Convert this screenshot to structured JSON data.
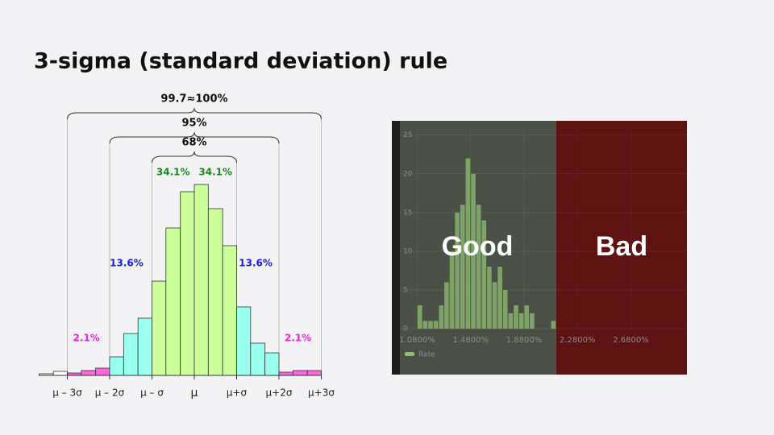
{
  "title": "3-sigma (standard deviation) rule",
  "chart_data": [
    {
      "type": "histogram",
      "bins": [
        -3.67,
        -3.33,
        -3,
        -2.67,
        -2.33,
        -2,
        -1.67,
        -1.33,
        -1,
        -0.67,
        -0.33,
        0,
        0.33,
        0.67,
        1,
        1.33,
        1.67,
        2,
        2.33,
        2.67,
        3
      ],
      "values": [
        2,
        5,
        3,
        6,
        9,
        23,
        52,
        71,
        117,
        183,
        228,
        237,
        207,
        161,
        85,
        40,
        28,
        4,
        6,
        6
      ],
      "colors": [
        "#f2f2f2",
        "#ffffff",
        "#ff66dd",
        "#ff66dd",
        "#ff66dd",
        "#99ffee",
        "#99ffee",
        "#99ffee",
        "#ccff99",
        "#ccff99",
        "#ccff99",
        "#ccff99",
        "#ccff99",
        "#ccff99",
        "#99ffee",
        "#99ffee",
        "#99ffee",
        "#ff66dd",
        "#ff66dd",
        "#ff66dd"
      ],
      "xticks": [
        {
          "value": -3,
          "label": "μ – 3σ"
        },
        {
          "value": -2,
          "label": "μ – 2σ"
        },
        {
          "value": -1,
          "label": "μ – σ"
        },
        {
          "value": 0,
          "label": "μ"
        },
        {
          "value": 1,
          "label": "μ+σ"
        },
        {
          "value": 2,
          "label": "μ+2σ"
        },
        {
          "value": 3,
          "label": "μ+3σ"
        }
      ],
      "braces": [
        {
          "label": "99.7≈100%",
          "from": -3,
          "to": 3
        },
        {
          "label": "95%",
          "from": -2,
          "to": 2
        },
        {
          "label": "68%",
          "from": -1,
          "to": 1
        }
      ],
      "annotations": [
        {
          "text": "34.1%",
          "x": -0.5,
          "color": "#1a8a1a"
        },
        {
          "text": "34.1%",
          "x": 0.5,
          "color": "#1a8a1a"
        },
        {
          "text": "13.6%",
          "x": -1.6,
          "color": "#1a1aee"
        },
        {
          "text": "13.6%",
          "x": 1.45,
          "color": "#1a1aee"
        },
        {
          "text": "2.1%",
          "x": -2.55,
          "color": "#ee22dd"
        },
        {
          "text": "2.1%",
          "x": 2.45,
          "color": "#ee22dd"
        }
      ]
    },
    {
      "type": "histogram",
      "bins": [
        1.08,
        1.12,
        1.16,
        1.2,
        1.24,
        1.28,
        1.32,
        1.36,
        1.4,
        1.44,
        1.48,
        1.52,
        1.56,
        1.6,
        1.64,
        1.68,
        1.72,
        1.76,
        1.8,
        1.84,
        1.88,
        1.92,
        1.96,
        2.0,
        2.04,
        2.08,
        2.12
      ],
      "values": [
        3,
        1,
        1,
        1,
        3,
        6,
        10,
        15,
        16,
        22,
        20,
        16,
        14,
        8,
        6,
        8,
        5,
        2,
        3,
        2,
        3,
        2,
        0,
        0,
        0,
        1
      ],
      "series_name": "Rate",
      "color": "#8fbf72",
      "xlim": [
        0.89,
        3.1
      ],
      "ylim": [
        0,
        25.8
      ],
      "xticks": [
        {
          "value": 1.08,
          "label": "1.0800%"
        },
        {
          "value": 1.48,
          "label": "1.4800%"
        },
        {
          "value": 1.88,
          "label": "1.8800%"
        },
        {
          "value": 2.28,
          "label": "2.2800%"
        },
        {
          "value": 2.68,
          "label": "2.6800%"
        }
      ],
      "yticks": [
        0,
        5,
        10,
        15,
        20,
        25
      ],
      "grid": true,
      "regions": [
        {
          "label": "Good",
          "from": 0.89,
          "to": 2.12,
          "color": "#4b5047"
        },
        {
          "label": "Bad",
          "from": 2.12,
          "to": 3.1,
          "color": "#5f1212"
        }
      ]
    }
  ]
}
